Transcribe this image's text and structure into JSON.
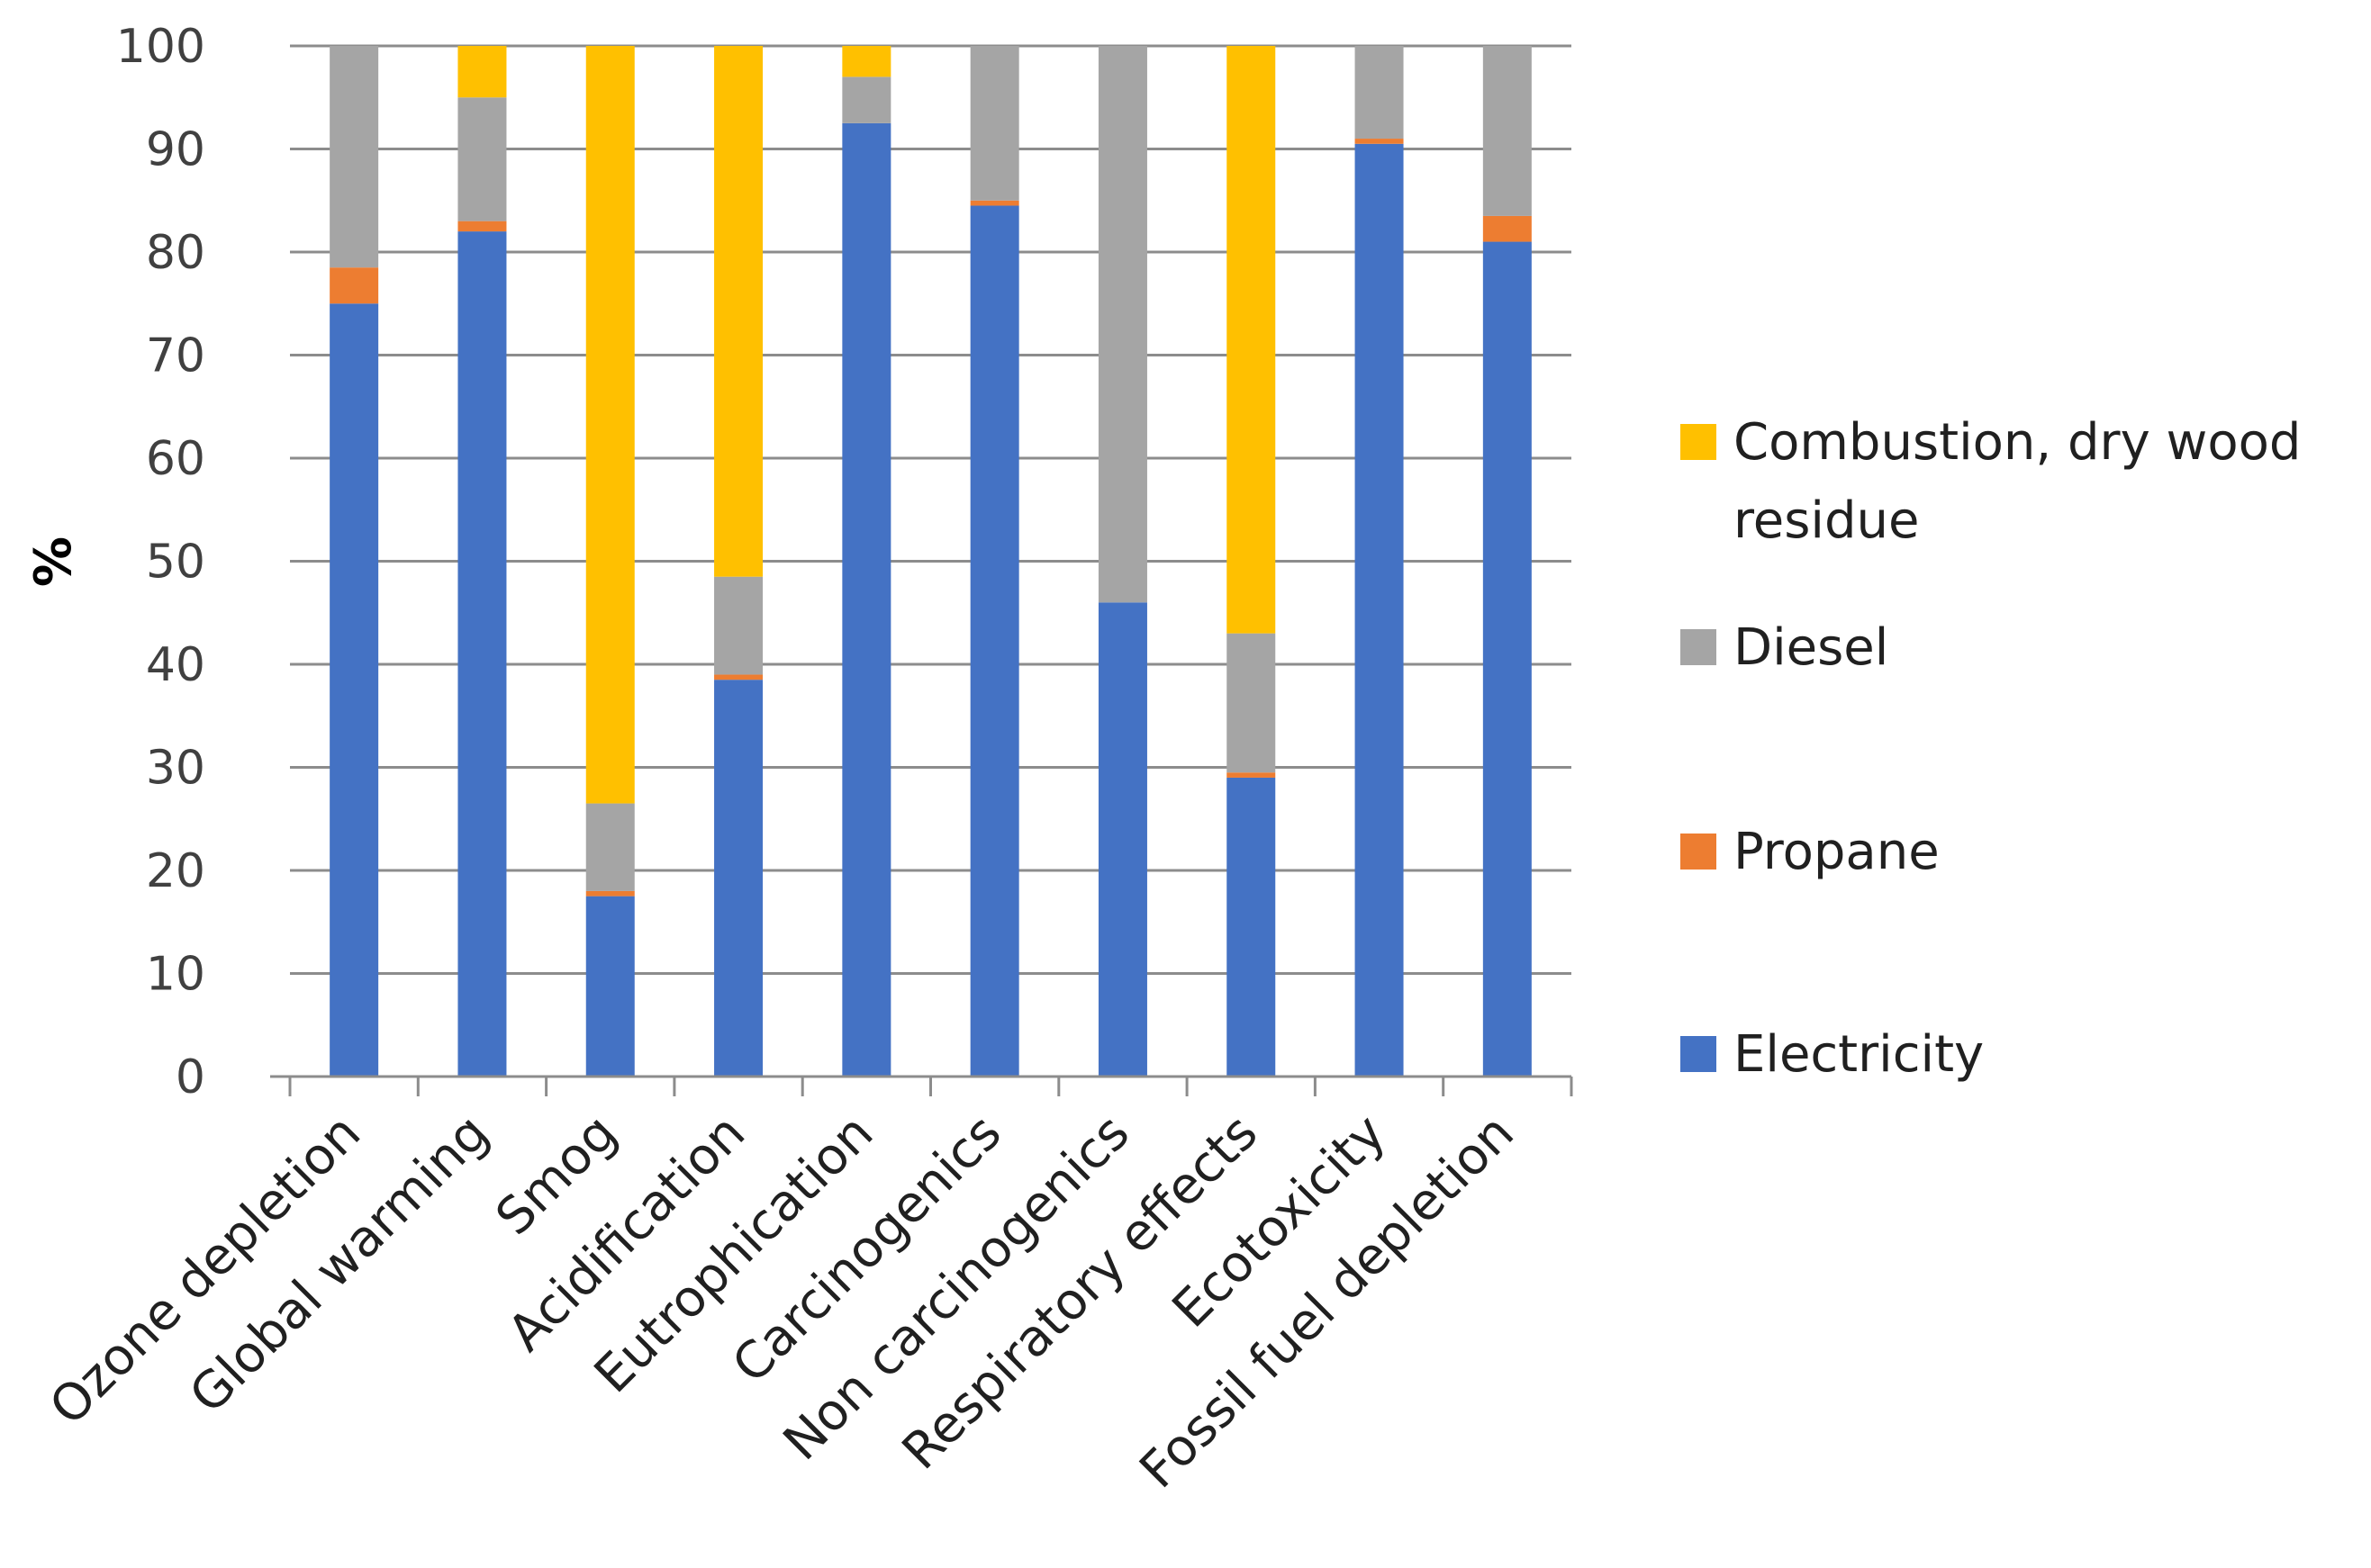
{
  "chart_data": {
    "type": "bar",
    "stacked": true,
    "title": "",
    "xlabel": "",
    "ylabel": "%",
    "ylim": [
      0,
      100
    ],
    "yticks": [
      0,
      10,
      20,
      30,
      40,
      50,
      60,
      70,
      80,
      90,
      100
    ],
    "grid": true,
    "legend_position": "right",
    "categories": [
      "Ozone depletion",
      "Global warming",
      "Smog",
      "Acidification",
      "Eutrophication",
      "Carcinogenics",
      "Non carcinogenics",
      "Respiratory effects",
      "Ecotoxicity",
      "Fossil fuel depletion"
    ],
    "series": [
      {
        "name": "Electricity",
        "color": "#4472C4",
        "values": [
          75,
          82,
          17.5,
          38.5,
          92.5,
          84.5,
          46,
          29,
          90.5,
          81
        ]
      },
      {
        "name": "Propane",
        "color": "#ED7D31",
        "values": [
          3.5,
          1,
          0.5,
          0.5,
          0,
          0.5,
          0,
          0.5,
          0.5,
          2.5
        ]
      },
      {
        "name": "Diesel",
        "color": "#A5A5A5",
        "values": [
          21.5,
          12,
          8.5,
          9.5,
          4.5,
          15,
          54,
          13.5,
          9,
          16.5
        ]
      },
      {
        "name": "Combustion, dry wood residue",
        "color": "#FFC000",
        "values": [
          0,
          5,
          73.5,
          51.5,
          3,
          0,
          0,
          57,
          0,
          0
        ]
      }
    ],
    "legend": {
      "entries": [
        {
          "series": 3,
          "lines": [
            "Combustion, dry wood",
            "residue"
          ]
        },
        {
          "series": 2,
          "lines": [
            "Diesel"
          ]
        },
        {
          "series": 1,
          "lines": [
            "Propane"
          ]
        },
        {
          "series": 0,
          "lines": [
            "Electricity"
          ]
        }
      ]
    }
  }
}
